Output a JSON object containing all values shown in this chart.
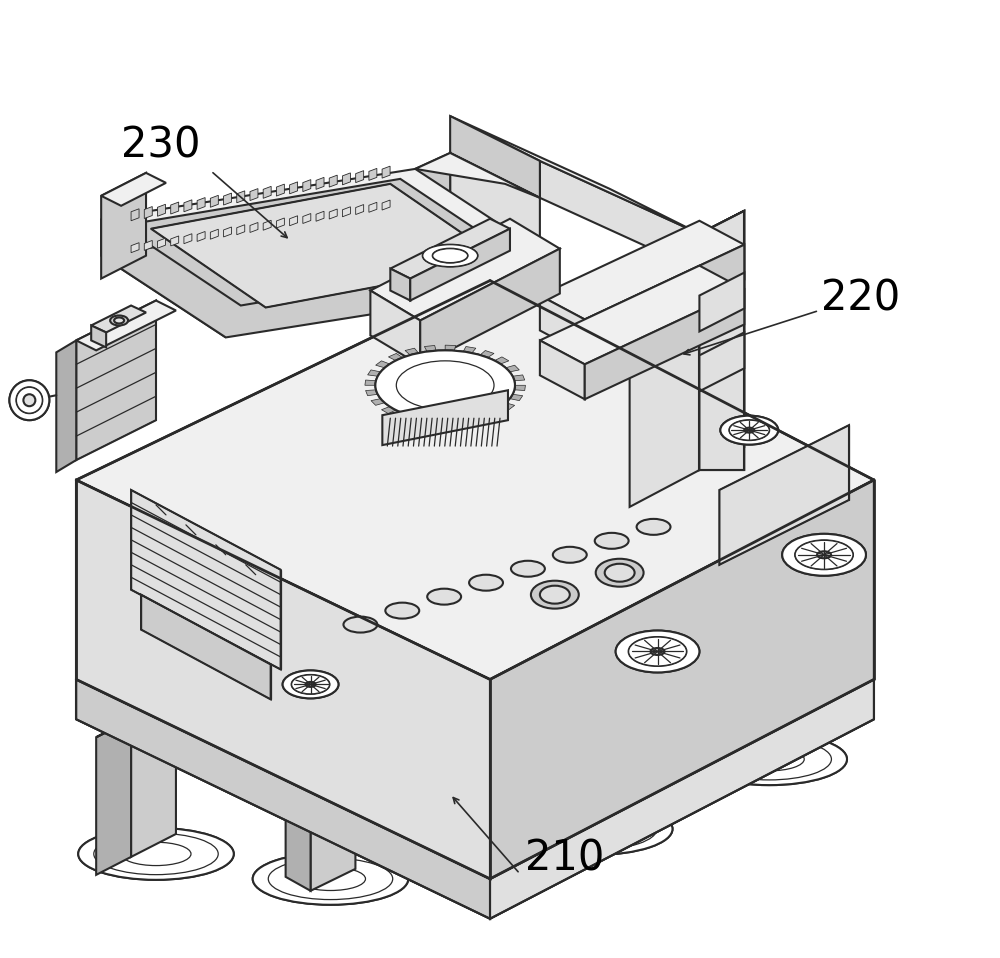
{
  "background_color": "#ffffff",
  "line_color": "#2a2a2a",
  "fill_white": "#ffffff",
  "fill_light": "#f0f0f0",
  "fill_med_light": "#e0e0e0",
  "fill_medium": "#cccccc",
  "fill_dark": "#b0b0b0",
  "fill_darker": "#909090",
  "label_fontsize": 30,
  "figsize": [
    10.0,
    9.58
  ],
  "dpi": 100
}
